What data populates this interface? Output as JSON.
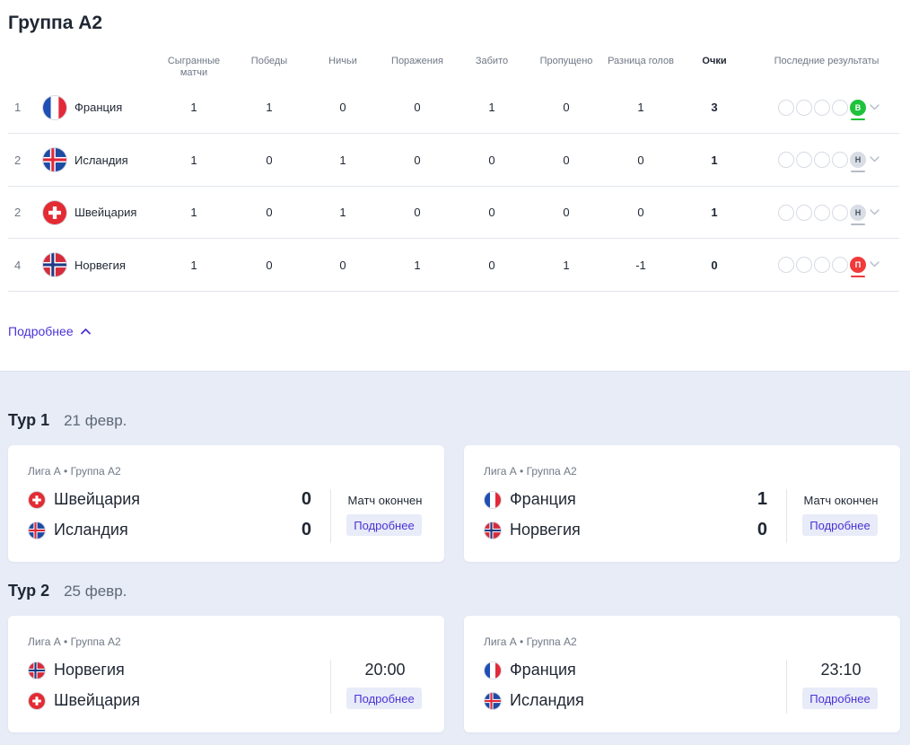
{
  "group": {
    "title": "Группа А2"
  },
  "table": {
    "headers": {
      "played": "Сыгранные матчи",
      "wins": "Победы",
      "draws": "Ничьи",
      "losses": "Поражения",
      "scored": "Забито",
      "conceded": "Пропущено",
      "diff": "Разница голов",
      "points": "Очки",
      "form": "Последние результаты"
    },
    "rows": [
      {
        "pos": "1",
        "team": "Франция",
        "flag": "france",
        "played": "1",
        "wins": "1",
        "draws": "0",
        "losses": "0",
        "scored": "1",
        "conceded": "0",
        "diff": "1",
        "points": "3",
        "last": "В",
        "last_type": "win"
      },
      {
        "pos": "2",
        "team": "Исландия",
        "flag": "iceland",
        "played": "1",
        "wins": "0",
        "draws": "1",
        "losses": "0",
        "scored": "0",
        "conceded": "0",
        "diff": "0",
        "points": "1",
        "last": "Н",
        "last_type": "draw"
      },
      {
        "pos": "2",
        "team": "Швейцария",
        "flag": "switzerland",
        "played": "1",
        "wins": "0",
        "draws": "1",
        "losses": "0",
        "scored": "0",
        "conceded": "0",
        "diff": "0",
        "points": "1",
        "last": "Н",
        "last_type": "draw"
      },
      {
        "pos": "4",
        "team": "Норвегия",
        "flag": "norway",
        "played": "1",
        "wins": "0",
        "draws": "0",
        "losses": "1",
        "scored": "0",
        "conceded": "1",
        "diff": "-1",
        "points": "0",
        "last": "П",
        "last_type": "loss"
      }
    ]
  },
  "more_link": "Подробнее",
  "rounds": [
    {
      "title": "Тур 1",
      "date": "21 февр.",
      "matches": [
        {
          "league": "Лига А",
          "group": "Группа А2",
          "home": "Швейцария",
          "home_flag": "switzerland",
          "away": "Исландия",
          "away_flag": "iceland",
          "home_score": "0",
          "away_score": "0",
          "status": "Матч окончен",
          "button": "Подробнее"
        },
        {
          "league": "Лига А",
          "group": "Группа А2",
          "home": "Франция",
          "home_flag": "france",
          "away": "Норвегия",
          "away_flag": "norway",
          "home_score": "1",
          "away_score": "0",
          "status": "Матч окончен",
          "button": "Подробнее"
        }
      ]
    },
    {
      "title": "Тур 2",
      "date": "25 февр.",
      "matches": [
        {
          "league": "Лига А",
          "group": "Группа А2",
          "home": "Норвегия",
          "home_flag": "norway",
          "away": "Швейцария",
          "away_flag": "switzerland",
          "time": "20:00",
          "button": "Подробнее"
        },
        {
          "league": "Лига А",
          "group": "Группа А2",
          "home": "Франция",
          "home_flag": "france",
          "away": "Исландия",
          "away_flag": "iceland",
          "time": "23:10",
          "button": "Подробнее"
        }
      ]
    }
  ],
  "colors": {
    "accent": "#4a33d6",
    "win": "#1fc23b",
    "draw": "#d9dde5",
    "loss": "#f03a3a",
    "bottom_bg": "#e7ecf7"
  }
}
